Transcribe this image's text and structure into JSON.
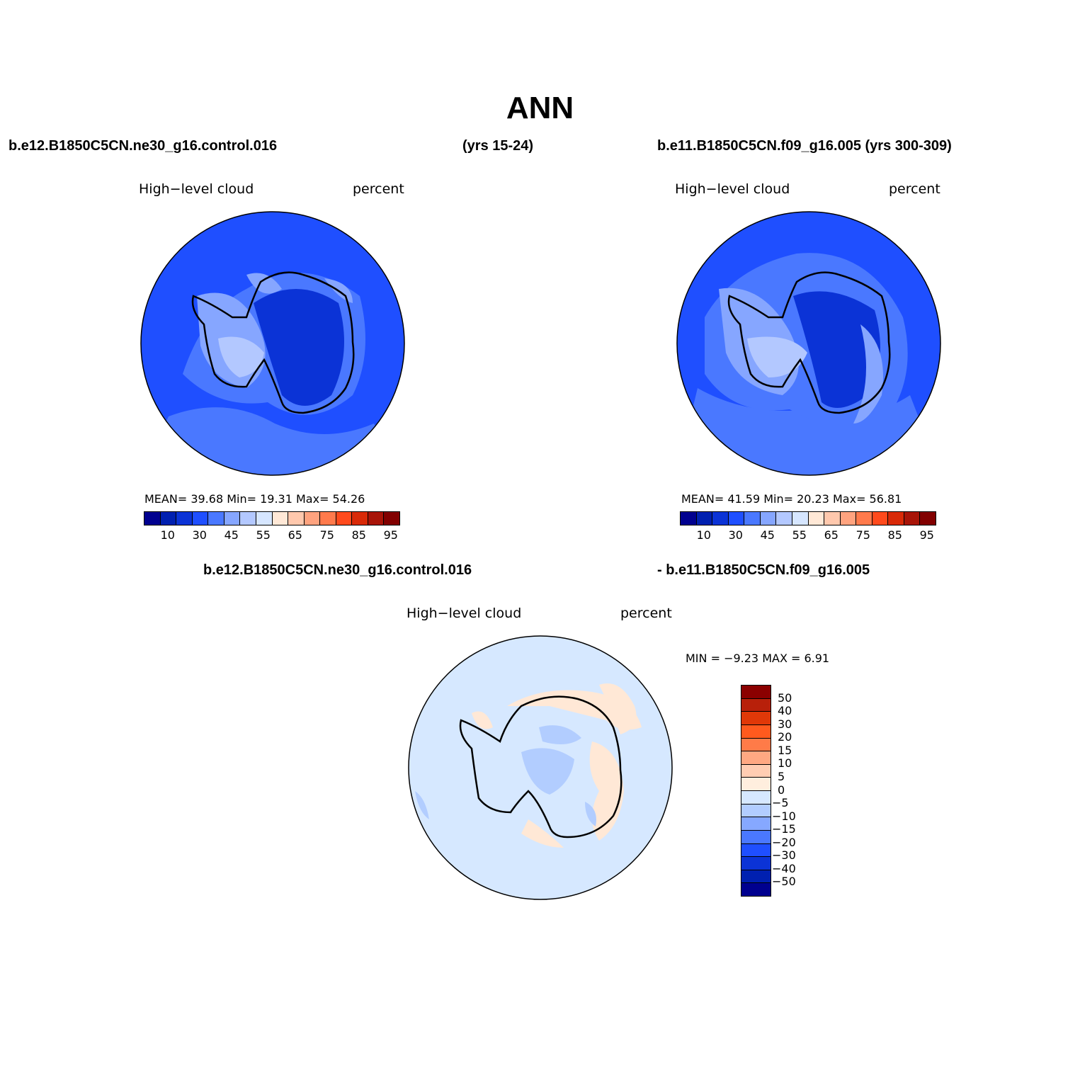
{
  "title": "ANN",
  "header_left": "b.e12.B1850C5CN.ne30_g16.control.016",
  "header_left_years": "(yrs 15-24)",
  "header_right": "b.e11.B1850C5CN.f09_g16.005 (yrs 300-309)",
  "diff_header_left": "b.e12.B1850C5CN.ne30_g16.control.016",
  "diff_header_right": "- b.e11.B1850C5CN.f09_g16.005",
  "panels": [
    {
      "variable": "High−level cloud",
      "units": "percent",
      "stats": "MEAN=   39.68   Min=   19.31   Max=   54.26"
    },
    {
      "variable": "High−level cloud",
      "units": "percent",
      "stats": "MEAN=   41.59   Min=   20.23   Max=   56.81"
    },
    {
      "variable": "High−level cloud",
      "units": "percent",
      "stats": "MIN =   −9.23  MAX =    6.91"
    }
  ],
  "colorbar_levels": [
    "10",
    "30",
    "45",
    "55",
    "65",
    "75",
    "85",
    "95"
  ],
  "colorbar_colors": [
    "#00008f",
    "#0020b0",
    "#0b33d6",
    "#1f4fff",
    "#4a78ff",
    "#86a6ff",
    "#b3c8ff",
    "#d6e6ff",
    "#ffe8d6",
    "#ffc8ad",
    "#ffa37f",
    "#ff7a4c",
    "#ff4a1c",
    "#d92a08",
    "#a81408",
    "#820000"
  ],
  "diff_levels": [
    "50",
    "40",
    "30",
    "20",
    "15",
    "10",
    "5",
    "0",
    "−5",
    "−10",
    "−15",
    "−20",
    "−30",
    "−40",
    "−50"
  ],
  "diff_colors": [
    "#8b0000",
    "#b8200a",
    "#e03808",
    "#ff5a1e",
    "#ff7b48",
    "#ffa882",
    "#ffcdb2",
    "#ffeede",
    "#d6e8ff",
    "#b2cdff",
    "#86a8ff",
    "#4a78ff",
    "#1f4fff",
    "#0b33d6",
    "#0020b0",
    "#00008f"
  ],
  "map_colors": {
    "ocean": "#1f4fff",
    "level2": "#4a78ff",
    "level3": "#86a6ff",
    "level4": "#b3c8ff",
    "level5": "#d6e6ff",
    "interior": "#0b33d6",
    "diff_base": "#d6e8ff",
    "diff_pos": "#ffe8d6",
    "diff_neg": "#b2cdff",
    "diff_neg2": "#86a8ff"
  }
}
